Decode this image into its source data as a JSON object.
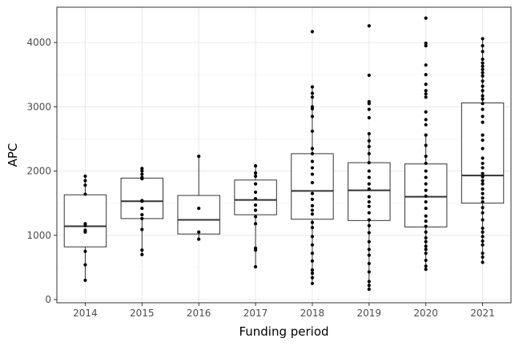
{
  "chart_data": {
    "type": "box",
    "xlabel": "Funding period",
    "ylabel": "APC",
    "ylim": [
      -50,
      4550
    ],
    "yticks": [
      0,
      1000,
      2000,
      3000,
      4000
    ],
    "grid": true,
    "categories": [
      "2014",
      "2015",
      "2016",
      "2017",
      "2018",
      "2019",
      "2020",
      "2021"
    ],
    "boxes": [
      {
        "category": "2014",
        "q1": 820,
        "median": 1140,
        "q3": 1630,
        "whisker_low": 300,
        "whisker_high": 1920,
        "points": [
          1920,
          1850,
          1780,
          1640,
          1180,
          1150,
          1080,
          1050,
          750,
          540,
          300
        ]
      },
      {
        "category": "2015",
        "q1": 1260,
        "median": 1530,
        "q3": 1890,
        "whisker_low": 700,
        "whisker_high": 2040,
        "points": [
          2040,
          2000,
          1950,
          1900,
          1880,
          1540,
          1530,
          1420,
          1320,
          1260,
          1090,
          770,
          700
        ]
      },
      {
        "category": "2016",
        "q1": 1020,
        "median": 1240,
        "q3": 1620,
        "whisker_low": 940,
        "whisker_high": 2230,
        "points": [
          2230,
          1420,
          1050,
          940
        ]
      },
      {
        "category": "2017",
        "q1": 1320,
        "median": 1550,
        "q3": 1860,
        "whisker_low": 510,
        "whisker_high": 2080,
        "points": [
          2080,
          1970,
          1920,
          1800,
          1670,
          1570,
          1470,
          1390,
          1290,
          1180,
          800,
          770,
          510
        ]
      },
      {
        "category": "2018",
        "q1": 1250,
        "median": 1690,
        "q3": 2270,
        "whisker_low": 250,
        "whisker_high": 3310,
        "points": [
          4170,
          3310,
          3210,
          3150,
          3000,
          2970,
          2850,
          2620,
          2350,
          2270,
          2150,
          2050,
          1950,
          1820,
          1650,
          1560,
          1460,
          1390,
          1330,
          1200,
          1120,
          980,
          850,
          720,
          600,
          460,
          410,
          340,
          250
        ]
      },
      {
        "category": "2019",
        "q1": 1230,
        "median": 1700,
        "q3": 2130,
        "whisker_low": 160,
        "whisker_high": 2580,
        "points": [
          4260,
          3490,
          3080,
          3050,
          2960,
          2830,
          2580,
          2470,
          2380,
          2270,
          2130,
          2000,
          1900,
          1800,
          1720,
          1600,
          1520,
          1450,
          1350,
          1240,
          1150,
          1040,
          900,
          780,
          690,
          560,
          430,
          280,
          220,
          160
        ]
      },
      {
        "category": "2020",
        "q1": 1130,
        "median": 1600,
        "q3": 2110,
        "whisker_low": 470,
        "whisker_high": 2560,
        "points": [
          4380,
          3990,
          3950,
          3650,
          3500,
          3350,
          3250,
          3200,
          3150,
          2920,
          2800,
          2720,
          2560,
          2400,
          2230,
          2120,
          2000,
          1900,
          1800,
          1700,
          1610,
          1520,
          1420,
          1300,
          1220,
          1140,
          1050,
          960,
          900,
          830,
          780,
          720,
          610,
          520,
          470
        ]
      },
      {
        "category": "2021",
        "q1": 1500,
        "median": 1930,
        "q3": 3060,
        "whisker_low": 580,
        "whisker_high": 4060,
        "points": [
          4060,
          3950,
          3860,
          3740,
          3680,
          3630,
          3580,
          3530,
          3480,
          3400,
          3320,
          3250,
          3170,
          3120,
          3050,
          2960,
          2850,
          2760,
          2560,
          2480,
          2350,
          2200,
          2120,
          2050,
          1960,
          1910,
          1850,
          1800,
          1720,
          1650,
          1580,
          1520,
          1430,
          1350,
          1240,
          1110,
          1050,
          980,
          910,
          850,
          720,
          660,
          580
        ]
      }
    ]
  }
}
